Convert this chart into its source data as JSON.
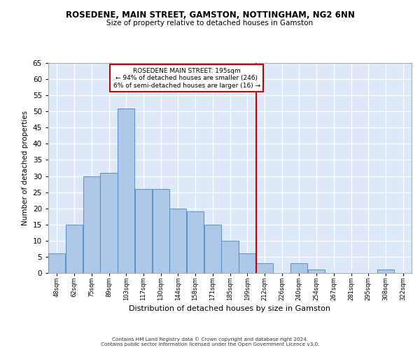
{
  "title1": "ROSEDENE, MAIN STREET, GAMSTON, NOTTINGHAM, NG2 6NN",
  "title2": "Size of property relative to detached houses in Gamston",
  "xlabel": "Distribution of detached houses by size in Gamston",
  "ylabel": "Number of detached properties",
  "bin_labels": [
    "48sqm",
    "62sqm",
    "75sqm",
    "89sqm",
    "103sqm",
    "117sqm",
    "130sqm",
    "144sqm",
    "158sqm",
    "171sqm",
    "185sqm",
    "199sqm",
    "212sqm",
    "226sqm",
    "240sqm",
    "254sqm",
    "267sqm",
    "281sqm",
    "295sqm",
    "308sqm",
    "322sqm"
  ],
  "bar_heights": [
    6,
    15,
    30,
    31,
    51,
    26,
    26,
    20,
    19,
    15,
    10,
    6,
    3,
    0,
    3,
    1,
    0,
    0,
    0,
    1,
    0
  ],
  "bar_color": "#aec6e8",
  "bar_edge_color": "#5b8dc8",
  "background_color": "#dde8f8",
  "grid_color": "#ffffff",
  "vline_bin": 11.5,
  "vline_color": "#cc0000",
  "annotation_text": "ROSEDENE MAIN STREET: 195sqm\n← 94% of detached houses are smaller (246)\n6% of semi-detached houses are larger (16) →",
  "annotation_box_facecolor": "#ffffff",
  "annotation_box_edgecolor": "#cc0000",
  "footer1": "Contains HM Land Registry data © Crown copyright and database right 2024.",
  "footer2": "Contains public sector information licensed under the Open Government Licence v3.0.",
  "ylim": [
    0,
    65
  ],
  "yticks": [
    0,
    5,
    10,
    15,
    20,
    25,
    30,
    35,
    40,
    45,
    50,
    55,
    60,
    65
  ]
}
